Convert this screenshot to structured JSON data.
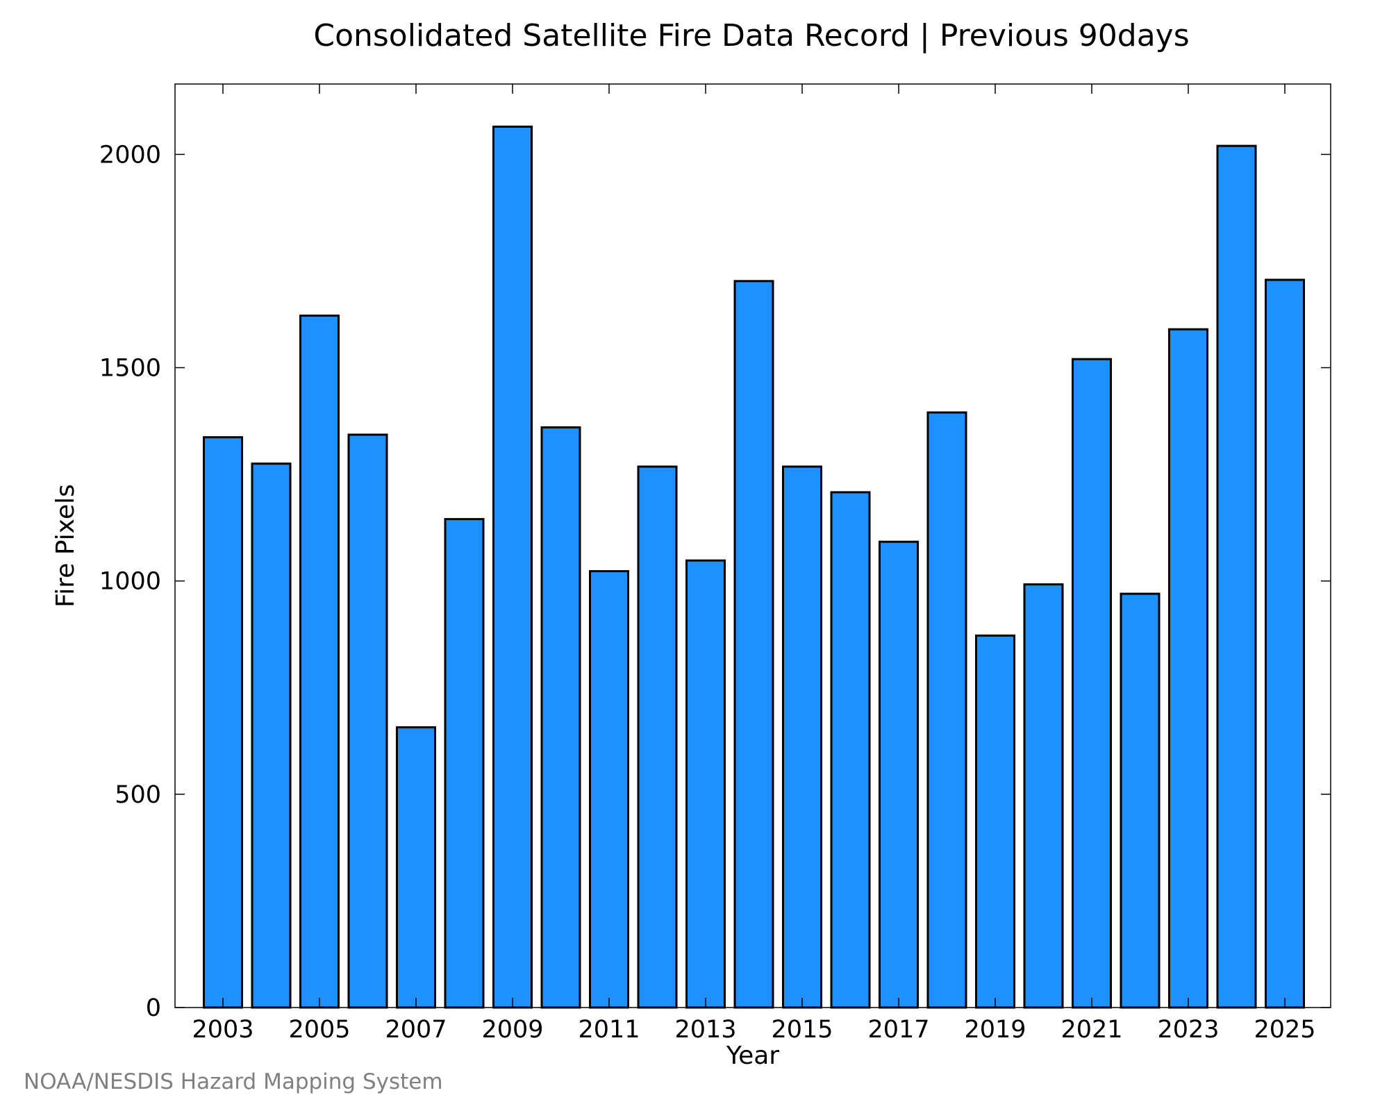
{
  "credit": "NOAA/NESDIS Hazard Mapping System",
  "chart_data": {
    "type": "bar",
    "title": "Consolidated Satellite Fire Data Record | Previous 90days",
    "xlabel": "Year",
    "ylabel": "Fire Pixels",
    "categories": [
      "2003",
      "2004",
      "2005",
      "2006",
      "2007",
      "2008",
      "2009",
      "2010",
      "2011",
      "2012",
      "2013",
      "2014",
      "2015",
      "2016",
      "2017",
      "2018",
      "2019",
      "2020",
      "2021",
      "2022",
      "2023",
      "2024",
      "2025"
    ],
    "values": [
      1337,
      1275,
      1622,
      1343,
      657,
      1145,
      2065,
      1360,
      1023,
      1268,
      1048,
      1703,
      1268,
      1208,
      1092,
      1395,
      872,
      992,
      1520,
      970,
      1590,
      2020,
      1706
    ],
    "xticks": [
      "2003",
      "2005",
      "2007",
      "2009",
      "2011",
      "2013",
      "2015",
      "2017",
      "2019",
      "2021",
      "2023",
      "2025"
    ],
    "yticks": [
      0,
      500,
      1000,
      1500,
      2000
    ],
    "ylim": [
      0,
      2165
    ],
    "bar_color": "#1e90ff",
    "bar_edge_color": "#000000",
    "grid": false,
    "legend": "none"
  }
}
